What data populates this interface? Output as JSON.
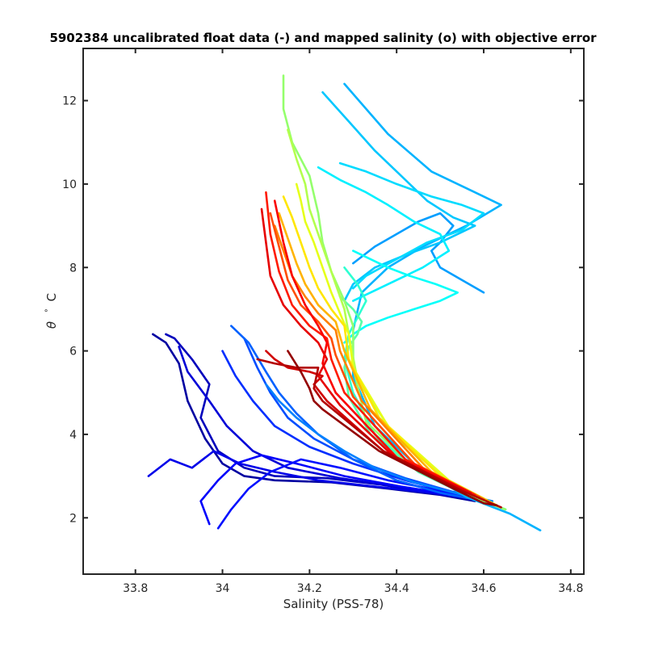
{
  "chart_data": {
    "type": "line",
    "title": "5902384 uncalibrated float data (-) and mapped salinity (o) with objective error",
    "xlabel": "Salinity (PSS-78)",
    "ylabel_symbol": "θ",
    "ylabel_degree": "°",
    "ylabel_unit": "C",
    "xlim": [
      33.68,
      34.83
    ],
    "ylim": [
      0.65,
      13.25
    ],
    "xticks": [
      33.8,
      34.0,
      34.2,
      34.4,
      34.6,
      34.8
    ],
    "xtick_labels": [
      "33.8",
      "34",
      "34.2",
      "34.4",
      "34.6",
      "34.8"
    ],
    "yticks": [
      2,
      4,
      6,
      8,
      10,
      12
    ],
    "ytick_labels": [
      "2",
      "4",
      "6",
      "8",
      "10",
      "12"
    ],
    "grid": false,
    "colormap": "jet",
    "colormap_stops": [
      "#00008f",
      "#0000ff",
      "#0080ff",
      "#00ffff",
      "#80ff80",
      "#ffff00",
      "#ff8000",
      "#ff0000",
      "#800000"
    ],
    "series": [
      {
        "color_index": 0.02,
        "x": [
          33.84,
          33.87,
          33.9,
          33.92,
          33.96,
          34.0,
          34.05,
          34.12,
          34.25,
          34.38,
          34.5,
          34.58
        ],
        "y": [
          6.4,
          6.2,
          5.7,
          4.8,
          3.9,
          3.3,
          3.0,
          2.9,
          2.85,
          2.7,
          2.55,
          2.4
        ]
      },
      {
        "color_index": 0.05,
        "x": [
          33.87,
          33.89,
          33.93,
          33.97,
          33.95,
          33.99,
          34.05,
          34.12,
          34.24,
          34.36,
          34.48,
          34.57
        ],
        "y": [
          6.4,
          6.3,
          5.8,
          5.2,
          4.4,
          3.6,
          3.2,
          3.0,
          2.95,
          2.8,
          2.6,
          2.45
        ]
      },
      {
        "color_index": 0.08,
        "x": [
          33.9,
          33.92,
          33.97,
          34.01,
          34.07,
          34.15,
          34.27,
          34.4,
          34.52,
          34.6
        ],
        "y": [
          6.1,
          5.5,
          4.8,
          4.2,
          3.6,
          3.2,
          2.95,
          2.75,
          2.55,
          2.4
        ]
      },
      {
        "color_index": 0.1,
        "x": [
          33.83,
          33.88,
          33.93,
          33.98,
          34.04,
          34.12,
          34.22,
          34.35,
          34.48,
          34.58
        ],
        "y": [
          3.0,
          3.4,
          3.2,
          3.6,
          3.3,
          3.1,
          2.9,
          2.75,
          2.6,
          2.45
        ]
      },
      {
        "color_index": 0.12,
        "x": [
          33.97,
          33.95,
          33.99,
          34.03,
          34.09,
          34.17,
          34.28,
          34.41,
          34.53,
          34.61
        ],
        "y": [
          1.85,
          2.4,
          2.9,
          3.3,
          3.5,
          3.3,
          3.0,
          2.75,
          2.55,
          2.4
        ]
      },
      {
        "color_index": 0.14,
        "x": [
          33.99,
          34.02,
          34.06,
          34.11,
          34.18,
          34.27,
          34.38,
          34.5,
          34.6
        ],
        "y": [
          1.75,
          2.2,
          2.7,
          3.1,
          3.4,
          3.2,
          2.9,
          2.65,
          2.45
        ]
      },
      {
        "color_index": 0.17,
        "x": [
          34.0,
          34.03,
          34.07,
          34.12,
          34.2,
          34.3,
          34.42,
          34.53,
          34.61
        ],
        "y": [
          6.0,
          5.4,
          4.8,
          4.2,
          3.7,
          3.3,
          2.9,
          2.6,
          2.42
        ]
      },
      {
        "color_index": 0.2,
        "x": [
          34.05,
          34.08,
          34.11,
          34.15,
          34.21,
          34.3,
          34.42,
          34.53,
          34.61
        ],
        "y": [
          6.3,
          5.6,
          5.0,
          4.4,
          3.9,
          3.4,
          2.95,
          2.62,
          2.42
        ]
      },
      {
        "color_index": 0.22,
        "x": [
          34.02,
          34.06,
          34.1,
          34.13,
          34.17,
          34.22,
          34.3,
          34.4,
          34.5,
          34.6
        ],
        "y": [
          6.6,
          6.2,
          5.5,
          5.0,
          4.5,
          4.0,
          3.4,
          2.9,
          2.6,
          2.4
        ]
      },
      {
        "color_index": 0.25,
        "x": [
          34.1,
          34.13,
          34.17,
          34.22,
          34.28,
          34.35,
          34.44,
          34.54,
          34.62
        ],
        "y": [
          5.2,
          4.8,
          4.4,
          4.0,
          3.6,
          3.2,
          2.85,
          2.58,
          2.4
        ]
      },
      {
        "color_index": 0.28,
        "x": [
          34.3,
          34.35,
          34.4,
          34.45,
          34.5,
          34.53,
          34.5,
          34.48,
          34.5,
          34.55,
          34.6
        ],
        "y": [
          8.1,
          8.5,
          8.8,
          9.1,
          9.3,
          9.0,
          8.6,
          8.4,
          8.0,
          7.7,
          7.4
        ]
      },
      {
        "color_index": 0.3,
        "x": [
          34.28,
          34.38,
          34.48,
          34.58,
          34.64,
          34.56,
          34.46,
          34.38,
          34.32,
          34.3,
          34.3,
          34.35,
          34.45,
          34.56,
          34.66,
          34.73
        ],
        "y": [
          12.4,
          11.2,
          10.3,
          9.8,
          9.5,
          9.0,
          8.5,
          8.0,
          7.4,
          6.5,
          5.4,
          4.2,
          3.2,
          2.5,
          2.1,
          1.7
        ]
      },
      {
        "color_index": 0.32,
        "x": [
          34.23,
          34.29,
          34.35,
          34.41,
          34.47,
          34.53,
          34.58,
          34.5,
          34.42,
          34.35,
          34.3,
          34.28
        ],
        "y": [
          12.2,
          11.5,
          10.8,
          10.2,
          9.6,
          9.2,
          9.0,
          8.6,
          8.3,
          8.0,
          7.6,
          7.2
        ]
      },
      {
        "color_index": 0.34,
        "x": [
          34.27,
          34.33,
          34.4,
          34.48,
          34.55,
          34.6,
          34.55,
          34.47,
          34.4,
          34.33,
          34.3
        ],
        "y": [
          10.5,
          10.3,
          10.0,
          9.7,
          9.5,
          9.3,
          8.9,
          8.6,
          8.2,
          7.8,
          7.5
        ]
      },
      {
        "color_index": 0.36,
        "x": [
          34.22,
          34.27,
          34.33,
          34.38,
          34.44,
          34.5,
          34.52,
          34.46,
          34.4,
          34.34,
          34.3
        ],
        "y": [
          10.4,
          10.1,
          9.8,
          9.5,
          9.1,
          8.8,
          8.4,
          8.0,
          7.7,
          7.4,
          7.2
        ]
      },
      {
        "color_index": 0.38,
        "x": [
          34.3,
          34.34,
          34.38,
          34.43,
          34.49,
          34.54,
          34.5,
          34.44,
          34.38,
          34.33,
          34.3,
          34.28
        ],
        "y": [
          8.4,
          8.2,
          8.0,
          7.8,
          7.6,
          7.4,
          7.2,
          7.0,
          6.8,
          6.6,
          6.4,
          6.2
        ]
      },
      {
        "color_index": 0.42,
        "x": [
          34.28,
          34.31,
          34.33,
          34.31,
          34.29,
          34.28,
          34.3,
          34.35,
          34.45,
          34.56,
          34.65
        ],
        "y": [
          8.0,
          7.6,
          7.2,
          6.8,
          6.4,
          5.8,
          5.0,
          4.0,
          3.1,
          2.55,
          2.2
        ]
      },
      {
        "color_index": 0.46,
        "x": [
          34.27,
          34.3,
          34.32,
          34.31,
          34.29,
          34.28,
          34.29,
          34.34,
          34.45,
          34.56,
          34.65
        ],
        "y": [
          7.3,
          7.0,
          6.7,
          6.4,
          6.1,
          5.6,
          4.9,
          4.0,
          3.1,
          2.55,
          2.2
        ]
      },
      {
        "color_index": 0.52,
        "x": [
          34.14,
          34.14,
          34.16,
          34.2,
          34.22,
          34.23,
          34.25,
          34.28,
          34.3,
          34.3,
          34.33,
          34.44,
          34.56,
          34.65
        ],
        "y": [
          12.6,
          11.8,
          11.0,
          10.2,
          9.3,
          8.6,
          7.9,
          7.2,
          6.6,
          5.6,
          4.3,
          3.2,
          2.55,
          2.2
        ]
      },
      {
        "color_index": 0.55,
        "x": [
          34.15,
          34.17,
          34.19,
          34.2,
          34.22,
          34.24,
          34.26,
          34.28,
          34.29,
          34.31,
          34.4,
          34.53,
          34.63
        ],
        "y": [
          11.3,
          10.6,
          10.0,
          9.4,
          8.8,
          8.2,
          7.6,
          7.0,
          6.4,
          5.3,
          3.9,
          2.8,
          2.3
        ]
      },
      {
        "color_index": 0.6,
        "x": [
          34.17,
          34.18,
          34.19,
          34.21,
          34.23,
          34.25,
          34.27,
          34.29,
          34.3,
          34.38,
          34.52,
          34.63
        ],
        "y": [
          10.0,
          9.6,
          9.1,
          8.6,
          8.0,
          7.4,
          6.9,
          6.4,
          5.6,
          4.2,
          2.9,
          2.3
        ]
      },
      {
        "color_index": 0.65,
        "x": [
          34.14,
          34.16,
          34.18,
          34.2,
          34.22,
          34.25,
          34.28,
          34.29,
          34.36,
          34.5,
          34.62
        ],
        "y": [
          9.7,
          9.2,
          8.6,
          8.0,
          7.5,
          7.0,
          6.6,
          5.8,
          4.4,
          3.0,
          2.35
        ]
      },
      {
        "color_index": 0.7,
        "x": [
          34.13,
          34.15,
          34.17,
          34.19,
          34.22,
          34.26,
          34.28,
          34.34,
          34.48,
          34.61
        ],
        "y": [
          9.3,
          8.7,
          8.1,
          7.6,
          7.1,
          6.7,
          6.0,
          4.6,
          3.1,
          2.4
        ]
      },
      {
        "color_index": 0.75,
        "x": [
          34.12,
          34.14,
          34.16,
          34.19,
          34.22,
          34.26,
          34.27,
          34.32,
          34.46,
          34.6
        ],
        "y": [
          9.0,
          8.4,
          7.8,
          7.3,
          6.9,
          6.5,
          6.0,
          4.8,
          3.2,
          2.45
        ]
      },
      {
        "color_index": 0.8,
        "x": [
          34.11,
          34.13,
          34.15,
          34.18,
          34.22,
          34.25,
          34.26,
          34.3,
          34.44,
          34.59
        ],
        "y": [
          9.3,
          8.5,
          7.7,
          7.1,
          6.7,
          6.3,
          5.9,
          4.9,
          3.3,
          2.5
        ]
      },
      {
        "color_index": 0.85,
        "x": [
          34.1,
          34.11,
          34.13,
          34.16,
          34.2,
          34.24,
          34.25,
          34.28,
          34.42,
          34.58
        ],
        "y": [
          9.8,
          8.8,
          7.9,
          7.1,
          6.6,
          6.3,
          5.8,
          5.0,
          3.4,
          2.55
        ]
      },
      {
        "color_index": 0.88,
        "x": [
          34.12,
          34.14,
          34.16,
          34.19,
          34.22,
          34.24,
          34.23,
          34.26,
          34.4,
          34.57
        ],
        "y": [
          9.6,
          8.6,
          7.8,
          7.1,
          6.6,
          6.2,
          5.7,
          5.0,
          3.45,
          2.6
        ]
      },
      {
        "color_index": 0.9,
        "x": [
          34.09,
          34.1,
          34.11,
          34.14,
          34.18,
          34.22,
          34.24,
          34.22,
          34.27,
          34.4,
          34.57
        ],
        "y": [
          9.4,
          8.6,
          7.8,
          7.1,
          6.6,
          6.2,
          5.8,
          5.4,
          4.7,
          3.4,
          2.6
        ]
      },
      {
        "color_index": 0.92,
        "x": [
          34.1,
          34.12,
          34.15,
          34.2,
          34.23,
          34.21,
          34.24,
          34.38,
          34.56
        ],
        "y": [
          6.0,
          5.8,
          5.6,
          5.5,
          5.4,
          5.2,
          4.8,
          3.5,
          2.6
        ]
      },
      {
        "color_index": 0.95,
        "x": [
          34.08,
          34.12,
          34.17,
          34.22,
          34.21,
          34.23,
          34.37,
          34.55,
          34.64
        ],
        "y": [
          5.8,
          5.7,
          5.6,
          5.6,
          5.1,
          4.8,
          3.6,
          2.65,
          2.25
        ]
      },
      {
        "color_index": 0.98,
        "x": [
          34.15,
          34.18,
          34.2,
          34.21,
          34.23,
          34.36,
          34.54,
          34.6,
          34.63
        ],
        "y": [
          6.0,
          5.5,
          5.1,
          4.8,
          4.6,
          3.6,
          2.65,
          2.35,
          2.3
        ]
      }
    ]
  }
}
